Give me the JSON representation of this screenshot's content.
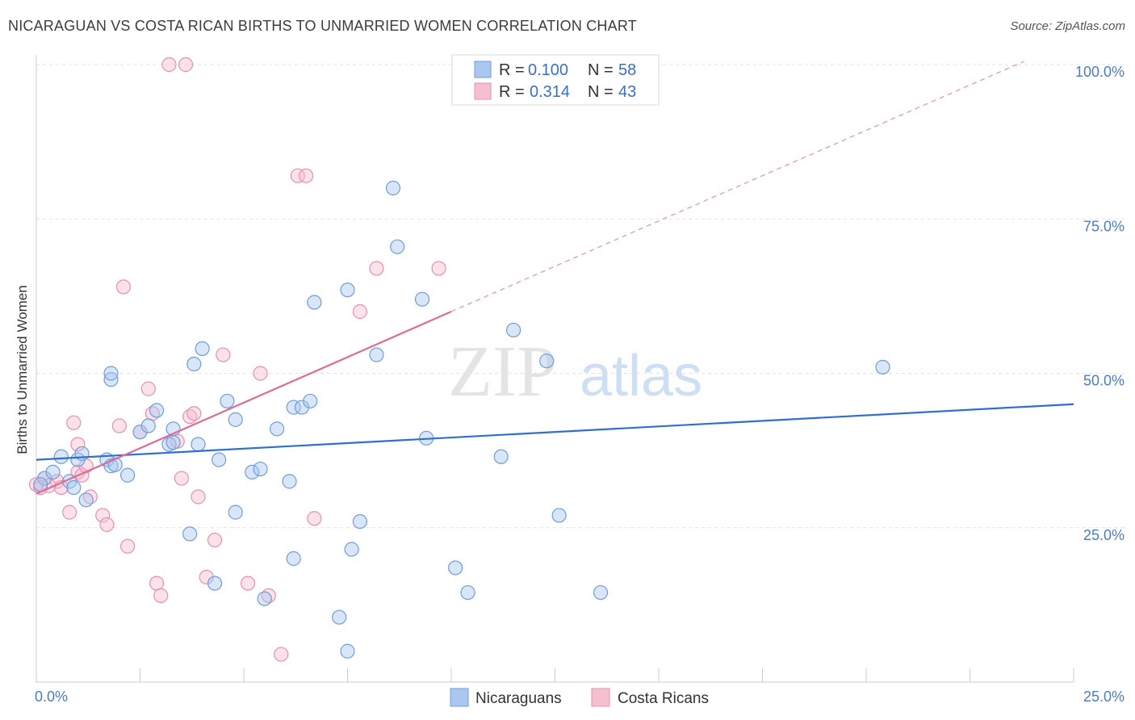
{
  "title": "NICARAGUAN VS COSTA RICAN BIRTHS TO UNMARRIED WOMEN CORRELATION CHART",
  "source": "Source: ZipAtlas.com",
  "watermark": {
    "zip": "ZIP",
    "atlas": "atlas"
  },
  "colors": {
    "blue_fill": "#a9c7ef",
    "blue_stroke": "#6f9ede",
    "blue_line": "#2f6fce",
    "pink_fill": "#f6bfd0",
    "pink_stroke": "#e890ad",
    "pink_line": "#e06a94"
  },
  "legend": {
    "rows": [
      {
        "r_label": "R =",
        "r_value": "0.100",
        "n_label": "N =",
        "n_value": "58"
      },
      {
        "r_label": "R =",
        "r_value": "0.314",
        "n_label": "N =",
        "n_value": "43"
      }
    ]
  },
  "bottom_legend": [
    "Nicaraguans",
    "Costa Ricans"
  ],
  "chart_data": {
    "type": "scatter",
    "title": "NICARAGUAN VS COSTA RICAN BIRTHS TO UNMARRIED WOMEN CORRELATION CHART",
    "xlabel": "",
    "ylabel": "Births to Unmarried Women",
    "xlim": [
      0,
      25
    ],
    "ylim": [
      0,
      102
    ],
    "x_tick_labels": [
      "0.0%",
      "25.0%"
    ],
    "y_ticks": [
      25,
      50,
      75,
      100
    ],
    "y_tick_labels": [
      "25.0%",
      "50.0%",
      "75.0%",
      "100.0%"
    ],
    "grid": true,
    "series": [
      {
        "name": "Nicaraguans",
        "r": 0.1,
        "n": 58,
        "trend": {
          "x": [
            0,
            25
          ],
          "y": [
            36.0,
            45.0
          ],
          "dashed_extension": false
        },
        "points": [
          [
            0.2,
            33.0
          ],
          [
            0.4,
            34.0
          ],
          [
            0.6,
            36.5
          ],
          [
            0.8,
            32.5
          ],
          [
            1.0,
            36.0
          ],
          [
            1.1,
            37.0
          ],
          [
            0.9,
            31.5
          ],
          [
            1.2,
            29.5
          ],
          [
            1.7,
            36.0
          ],
          [
            1.8,
            35.0
          ],
          [
            1.9,
            35.2
          ],
          [
            2.2,
            33.5
          ],
          [
            1.8,
            49.0
          ],
          [
            1.8,
            50.0
          ],
          [
            2.5,
            40.5
          ],
          [
            2.7,
            41.5
          ],
          [
            2.9,
            44.0
          ],
          [
            3.2,
            38.5
          ],
          [
            3.3,
            41.0
          ],
          [
            3.3,
            38.8
          ],
          [
            3.8,
            51.5
          ],
          [
            4.0,
            54.0
          ],
          [
            3.9,
            38.5
          ],
          [
            3.7,
            24.0
          ],
          [
            4.3,
            16.0
          ],
          [
            4.4,
            36.0
          ],
          [
            4.6,
            45.5
          ],
          [
            4.8,
            42.5
          ],
          [
            4.8,
            27.5
          ],
          [
            5.2,
            34.0
          ],
          [
            5.4,
            34.5
          ],
          [
            5.5,
            13.5
          ],
          [
            5.8,
            41.0
          ],
          [
            6.2,
            20.0
          ],
          [
            6.1,
            32.5
          ],
          [
            6.2,
            44.5
          ],
          [
            6.4,
            44.5
          ],
          [
            6.6,
            45.5
          ],
          [
            6.7,
            61.5
          ],
          [
            7.3,
            10.5
          ],
          [
            7.6,
            21.5
          ],
          [
            7.5,
            63.5
          ],
          [
            7.5,
            5.0
          ],
          [
            7.8,
            26.0
          ],
          [
            8.2,
            53.0
          ],
          [
            8.6,
            80.0
          ],
          [
            8.7,
            70.5
          ],
          [
            9.3,
            62.0
          ],
          [
            9.4,
            39.5
          ],
          [
            10.1,
            18.5
          ],
          [
            10.4,
            14.5
          ],
          [
            11.2,
            36.5
          ],
          [
            11.5,
            57.0
          ],
          [
            12.3,
            52.0
          ],
          [
            12.6,
            27.0
          ],
          [
            13.6,
            14.5
          ],
          [
            20.4,
            51.0
          ],
          [
            0.1,
            32.0
          ]
        ]
      },
      {
        "name": "Costa Ricans",
        "r": 0.314,
        "n": 43,
        "trend": {
          "x": [
            0,
            10
          ],
          "y": [
            30.5,
            60.0
          ],
          "extension_x": [
            10,
            23.8
          ],
          "extension_y": [
            60.0,
            100.5
          ]
        },
        "points": [
          [
            0.0,
            32.0
          ],
          [
            0.1,
            31.5
          ],
          [
            0.2,
            33.0
          ],
          [
            0.5,
            32.5
          ],
          [
            0.6,
            31.5
          ],
          [
            0.8,
            27.5
          ],
          [
            0.9,
            42.0
          ],
          [
            1.0,
            34.0
          ],
          [
            1.0,
            38.5
          ],
          [
            1.1,
            33.5
          ],
          [
            1.2,
            35.0
          ],
          [
            1.3,
            30.0
          ],
          [
            1.6,
            27.0
          ],
          [
            1.7,
            25.5
          ],
          [
            2.0,
            41.5
          ],
          [
            2.1,
            64.0
          ],
          [
            2.2,
            22.0
          ],
          [
            2.5,
            40.5
          ],
          [
            2.7,
            47.5
          ],
          [
            2.8,
            43.5
          ],
          [
            2.9,
            16.0
          ],
          [
            3.0,
            14.0
          ],
          [
            3.2,
            100.0
          ],
          [
            3.4,
            39.0
          ],
          [
            3.5,
            33.0
          ],
          [
            3.6,
            100.0
          ],
          [
            3.7,
            43.0
          ],
          [
            3.8,
            43.5
          ],
          [
            3.9,
            30.0
          ],
          [
            4.1,
            17.0
          ],
          [
            4.3,
            23.0
          ],
          [
            4.5,
            53.0
          ],
          [
            5.1,
            16.0
          ],
          [
            5.4,
            50.0
          ],
          [
            5.6,
            14.0
          ],
          [
            5.9,
            4.5
          ],
          [
            6.3,
            82.0
          ],
          [
            6.5,
            82.0
          ],
          [
            6.7,
            26.5
          ],
          [
            7.8,
            60.0
          ],
          [
            8.2,
            67.0
          ],
          [
            9.7,
            67.0
          ],
          [
            0.3,
            31.8
          ]
        ]
      }
    ]
  }
}
